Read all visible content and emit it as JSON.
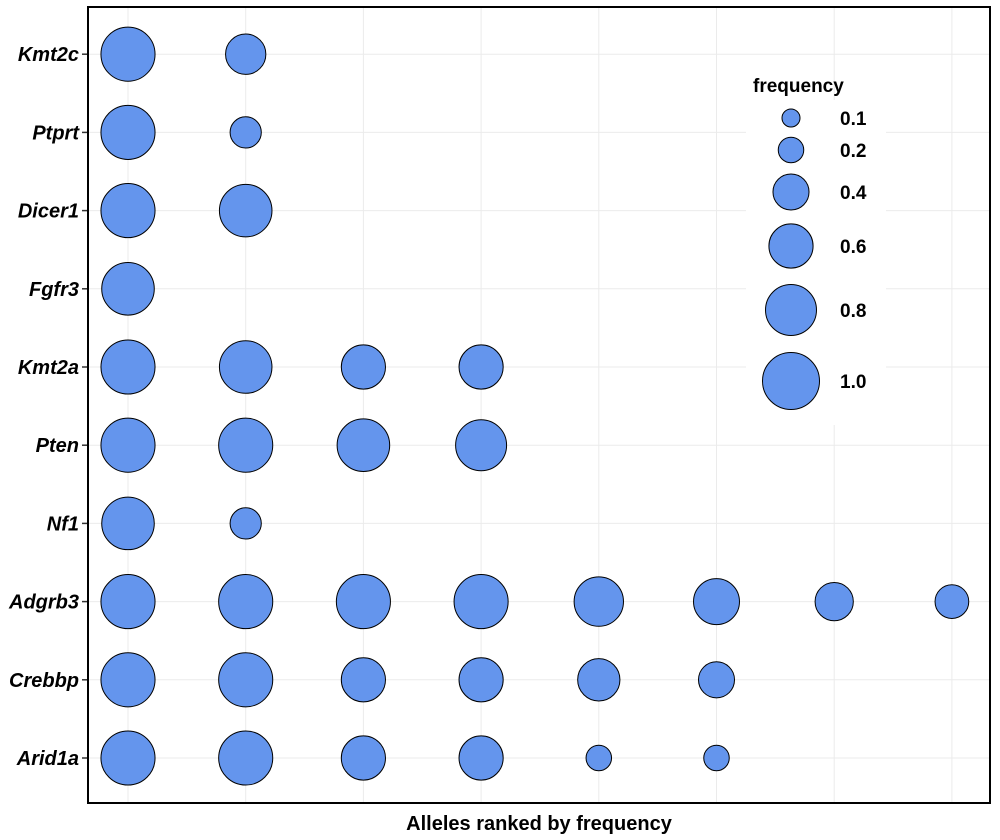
{
  "chart_data": {
    "type": "scatter",
    "xlabel": "Alleles ranked by frequency",
    "ylabel": "",
    "categories": [
      "Arid1a",
      "Crebbp",
      "Adgrb3",
      "Nf1",
      "Pten",
      "Kmt2a",
      "Fgfr3",
      "Dicer1",
      "Ptprt",
      "Kmt2c"
    ],
    "x_ranks": [
      1,
      2,
      3,
      4,
      5,
      6,
      7,
      8
    ],
    "points": [
      {
        "gene": "Kmt2c",
        "rank": 1,
        "frequency": 0.9
      },
      {
        "gene": "Kmt2c",
        "rank": 2,
        "frequency": 0.5
      },
      {
        "gene": "Ptprt",
        "rank": 1,
        "frequency": 0.9
      },
      {
        "gene": "Ptprt",
        "rank": 2,
        "frequency": 0.3
      },
      {
        "gene": "Dicer1",
        "rank": 1,
        "frequency": 0.9
      },
      {
        "gene": "Dicer1",
        "rank": 2,
        "frequency": 0.85
      },
      {
        "gene": "Fgfr3",
        "rank": 1,
        "frequency": 0.85
      },
      {
        "gene": "Kmt2a",
        "rank": 1,
        "frequency": 0.9
      },
      {
        "gene": "Kmt2a",
        "rank": 2,
        "frequency": 0.85
      },
      {
        "gene": "Kmt2a",
        "rank": 3,
        "frequency": 0.6
      },
      {
        "gene": "Kmt2a",
        "rank": 4,
        "frequency": 0.6
      },
      {
        "gene": "Pten",
        "rank": 1,
        "frequency": 0.9
      },
      {
        "gene": "Pten",
        "rank": 2,
        "frequency": 0.9
      },
      {
        "gene": "Pten",
        "rank": 3,
        "frequency": 0.85
      },
      {
        "gene": "Pten",
        "rank": 4,
        "frequency": 0.8
      },
      {
        "gene": "Nf1",
        "rank": 1,
        "frequency": 0.85
      },
      {
        "gene": "Nf1",
        "rank": 2,
        "frequency": 0.3
      },
      {
        "gene": "Adgrb3",
        "rank": 1,
        "frequency": 0.9
      },
      {
        "gene": "Adgrb3",
        "rank": 2,
        "frequency": 0.9
      },
      {
        "gene": "Adgrb3",
        "rank": 3,
        "frequency": 0.9
      },
      {
        "gene": "Adgrb3",
        "rank": 4,
        "frequency": 0.9
      },
      {
        "gene": "Adgrb3",
        "rank": 5,
        "frequency": 0.75
      },
      {
        "gene": "Adgrb3",
        "rank": 6,
        "frequency": 0.65
      },
      {
        "gene": "Adgrb3",
        "rank": 7,
        "frequency": 0.45
      },
      {
        "gene": "Adgrb3",
        "rank": 8,
        "frequency": 0.35
      },
      {
        "gene": "Crebbp",
        "rank": 1,
        "frequency": 0.9
      },
      {
        "gene": "Crebbp",
        "rank": 2,
        "frequency": 0.9
      },
      {
        "gene": "Crebbp",
        "rank": 3,
        "frequency": 0.6
      },
      {
        "gene": "Crebbp",
        "rank": 4,
        "frequency": 0.6
      },
      {
        "gene": "Crebbp",
        "rank": 5,
        "frequency": 0.55
      },
      {
        "gene": "Crebbp",
        "rank": 6,
        "frequency": 0.4
      },
      {
        "gene": "Arid1a",
        "rank": 1,
        "frequency": 0.9
      },
      {
        "gene": "Arid1a",
        "rank": 2,
        "frequency": 0.9
      },
      {
        "gene": "Arid1a",
        "rank": 3,
        "frequency": 0.6
      },
      {
        "gene": "Arid1a",
        "rank": 4,
        "frequency": 0.6
      },
      {
        "gene": "Arid1a",
        "rank": 5,
        "frequency": 0.2
      },
      {
        "gene": "Arid1a",
        "rank": 6,
        "frequency": 0.2
      }
    ],
    "legend": {
      "title": "frequency",
      "position": "top-right",
      "values": [
        0.1,
        0.2,
        0.4,
        0.6,
        0.8,
        1.0
      ],
      "labels": [
        "0.1",
        "0.2",
        "0.4",
        "0.6",
        "0.8",
        "1.0"
      ]
    },
    "grid": true,
    "point_color": "#6495ED",
    "point_stroke": "#000000"
  }
}
